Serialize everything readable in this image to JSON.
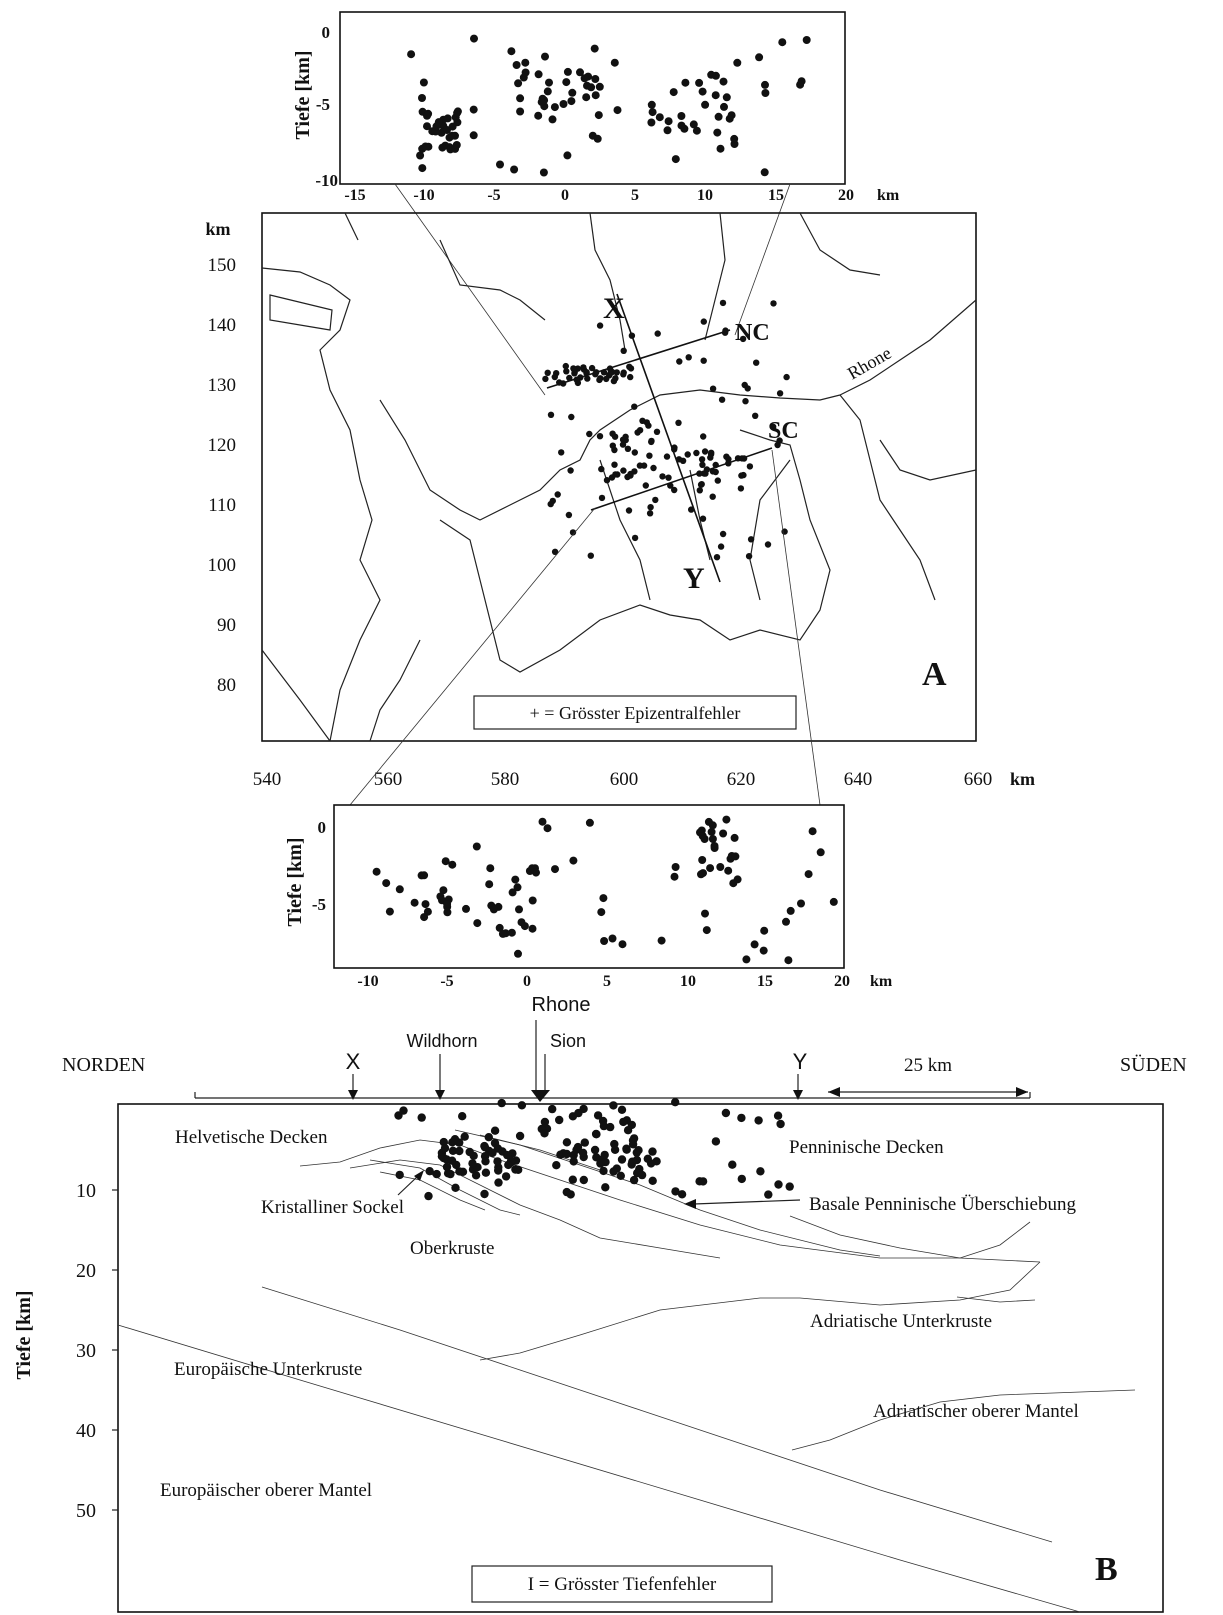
{
  "panel_top": {
    "ylabel": "Tiefe [km]",
    "xunit": "km",
    "xticks": [
      "-15",
      "-10",
      "-5",
      "0",
      "5",
      "10",
      "15",
      "20"
    ],
    "yticks": [
      "0",
      "-5",
      "-10"
    ]
  },
  "map": {
    "yunit": "km",
    "xunit": "km",
    "yticks": [
      "150",
      "140",
      "130",
      "120",
      "110",
      "100",
      "90",
      "80"
    ],
    "xticks": [
      "540",
      "560",
      "580",
      "600",
      "620",
      "640",
      "660"
    ],
    "labels": {
      "x": "X",
      "y": "Y",
      "nc": "NC",
      "sc": "SC",
      "rhone": "Rhone",
      "panel": "A"
    },
    "legend": "+ = Grösster Epizentralfehler"
  },
  "panel_bottom": {
    "ylabel": "Tiefe [km]",
    "xunit": "km",
    "xticks": [
      "-10",
      "-5",
      "0",
      "5",
      "10",
      "15",
      "20"
    ],
    "yticks": [
      "0",
      "-5"
    ]
  },
  "section": {
    "north": "NORDEN",
    "south": "SÜDEN",
    "markers": {
      "x": "X",
      "wildhorn": "Wildhorn",
      "rhone": "Rhone",
      "sion": "Sion",
      "y": "Y"
    },
    "scale": "25 km",
    "ylabel": "Tiefe [km]",
    "yticks": [
      "10",
      "20",
      "30",
      "40",
      "50"
    ],
    "units": {
      "helv": "Helvetische Decken",
      "krist": "Kristalliner Sockel",
      "ober": "Oberkruste",
      "eu_unter": "Europäische Unterkruste",
      "eu_mantel": "Europäischer oberer Mantel",
      "penn": "Penninische Decken",
      "basale": "Basale Penninische Überschiebung",
      "adr_unter": "Adriatische Unterkruste",
      "adr_mantel": "Adriatischer oberer Mantel"
    },
    "panel": "B",
    "legend": "I = Grösster Tiefenfehler"
  }
}
